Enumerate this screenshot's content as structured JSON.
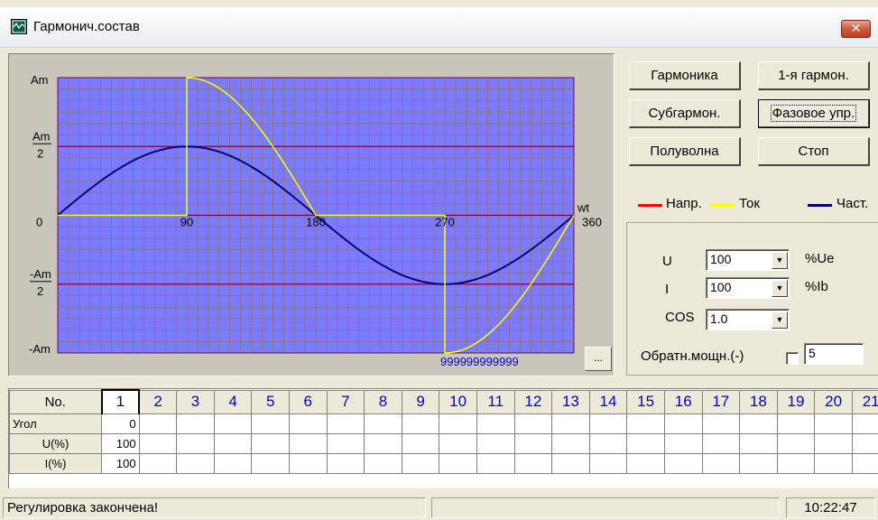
{
  "window": {
    "title": "Гармонич.состав",
    "close_icon": "close-icon"
  },
  "plot": {
    "y_labels": {
      "am_top": "Am",
      "am_half_num": "Am",
      "am_half_den": "2",
      "zero": "0",
      "neg_half_num": "-Am",
      "neg_half_den": "2",
      "neg_am": "-Am"
    },
    "x_labels": [
      "90",
      "180",
      "270",
      "360"
    ],
    "x_axis_label": "wt",
    "overflow_text": "999999999999",
    "more_button": "...",
    "colors": {
      "background": "#7b7bff",
      "grid": "#9a6a5a",
      "major": "#7b0040",
      "voltage": "#ff0000",
      "current": "#ffff00",
      "harmonic": "#00007a"
    }
  },
  "chart_data": {
    "type": "line",
    "x_unit": "degrees",
    "xlim": [
      0,
      360
    ],
    "y_unit": "Am",
    "ylim": [
      -1,
      1
    ],
    "series": [
      {
        "name": "Ток",
        "color": "#ffff00",
        "x": [
          0,
          90,
          90,
          180,
          270,
          270,
          360
        ],
        "y": [
          0,
          0,
          1,
          0,
          0,
          -1,
          0
        ],
        "shape": "phase-controlled sine (firing angle 90)"
      },
      {
        "name": "Част.",
        "color": "#00007a",
        "x": [
          0,
          90,
          180,
          270,
          360
        ],
        "y": [
          0,
          0.5,
          0,
          -0.5,
          0
        ],
        "shape": "sine, amplitude 0.5"
      }
    ]
  },
  "buttons": {
    "harmonic": "Гармоника",
    "first_harmonic": "1-я гармон.",
    "subharmonic": "Субгармон.",
    "phase_control": "Фазовое упр.",
    "half_wave": "Полуволна",
    "stop": "Стоп"
  },
  "legend": {
    "voltage": "Напр.",
    "current": "Ток",
    "partial": "Част."
  },
  "params": {
    "u_label": "U",
    "u_value": "100",
    "u_unit": "%Ue",
    "i_label": "I",
    "i_value": "100",
    "i_unit": "%Ib",
    "cos_label": "COS",
    "cos_value": "1.0",
    "reverse_power_label": "Обратн.мощн.(-)",
    "reverse_power_checked": false,
    "number_value": "5"
  },
  "grid": {
    "corner": "No.",
    "columns": [
      "1",
      "2",
      "3",
      "4",
      "5",
      "6",
      "7",
      "8",
      "9",
      "10",
      "11",
      "12",
      "13",
      "14",
      "15",
      "16",
      "17",
      "18",
      "19",
      "20",
      "21"
    ],
    "rows": [
      {
        "label": "Угол",
        "values": [
          "0"
        ]
      },
      {
        "label": "U(%)",
        "values": [
          "100"
        ]
      },
      {
        "label": "I(%)",
        "values": [
          "100"
        ]
      }
    ]
  },
  "status": {
    "message": "Регулировка закончена!",
    "middle": "",
    "time": "10:22:47"
  }
}
